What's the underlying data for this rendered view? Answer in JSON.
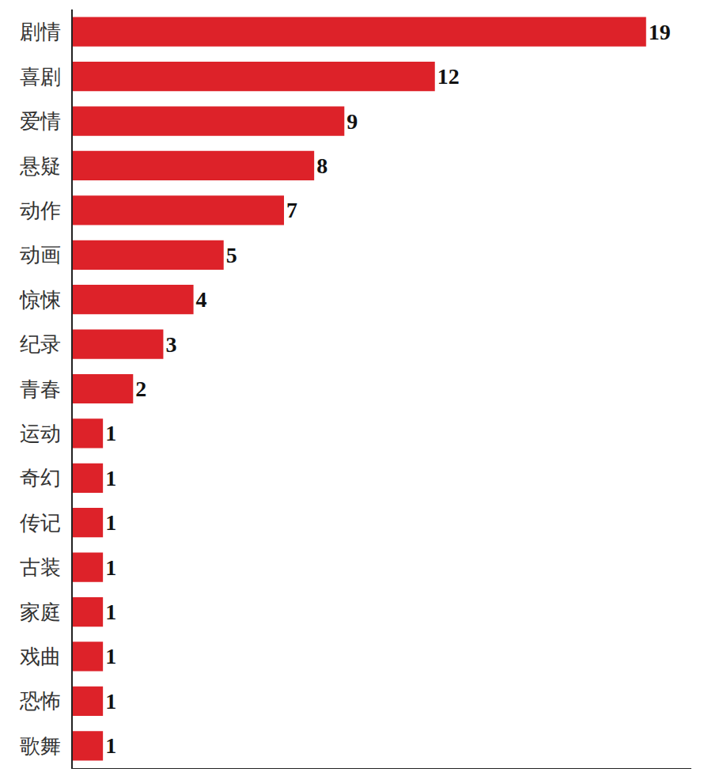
{
  "chart_data": {
    "type": "bar",
    "orientation": "horizontal",
    "categories": [
      "剧情",
      "喜剧",
      "爱情",
      "悬疑",
      "动作",
      "动画",
      "惊悚",
      "纪录",
      "青春",
      "运动",
      "奇幻",
      "传记",
      "古装",
      "家庭",
      "戏曲",
      "恐怖",
      "歌舞"
    ],
    "values": [
      19,
      12,
      9,
      8,
      7,
      5,
      4,
      3,
      2,
      1,
      1,
      1,
      1,
      1,
      1,
      1,
      1
    ],
    "color": "#dd2229",
    "xlim": [
      0,
      20.5
    ],
    "data_labels": true,
    "tick_labels": "y",
    "grid": false
  }
}
